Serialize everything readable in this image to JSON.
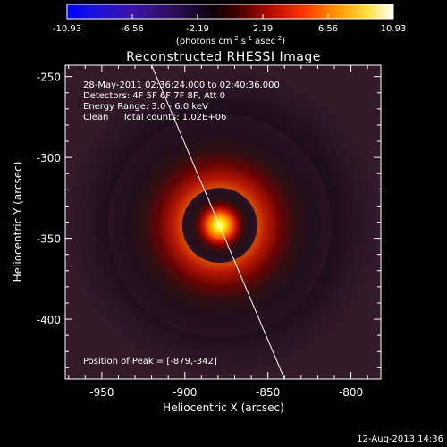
{
  "colorbar": {
    "ticks": [
      "-10.93",
      "-6.56",
      "-2.19",
      "2.19",
      "6.56",
      "10.93"
    ],
    "tick_values": [
      -10.93,
      -6.56,
      -2.19,
      2.19,
      6.56,
      10.93
    ],
    "range": [
      -10.93,
      10.93
    ],
    "units_main": "(photons cm",
    "units_exp1": "-2",
    "units_mid1": " s",
    "units_exp2": "-1",
    "units_mid2": " asec",
    "units_exp3": "-2",
    "units_end": ")"
  },
  "plot": {
    "title": "Reconstructed RHESSI Image",
    "info_lines": [
      "28-May-2011 02:36:24.000 to 02:40:36.000",
      "Detectors: 4F 5F 6F 7F 8F, Att 0",
      "Energy Range: 3.0 - 6.0 keV",
      "Clean     Total counts: 1.02E+06"
    ],
    "peak_label": "Position of Peak = [-879,-342]",
    "xlabel": "Heliocentric X (arcsec)",
    "ylabel": "Heliocentric Y (arcsec)",
    "xticks": [
      "-950",
      "-900",
      "-850",
      "-800"
    ],
    "xtick_values": [
      -950,
      -900,
      -850,
      -800
    ],
    "yticks": [
      "-250",
      "-300",
      "-350",
      "-400"
    ],
    "ytick_values": [
      -250,
      -300,
      -350,
      -400
    ],
    "xlim": [
      -972,
      -782
    ],
    "ylim": [
      -437,
      -243
    ],
    "peak": [
      -879,
      -342
    ],
    "limb_line": [
      [
        -920,
        -243
      ],
      [
        -840,
        -437
      ]
    ]
  },
  "footer": {
    "timestamp": "12-Aug-2013 14:36"
  }
}
